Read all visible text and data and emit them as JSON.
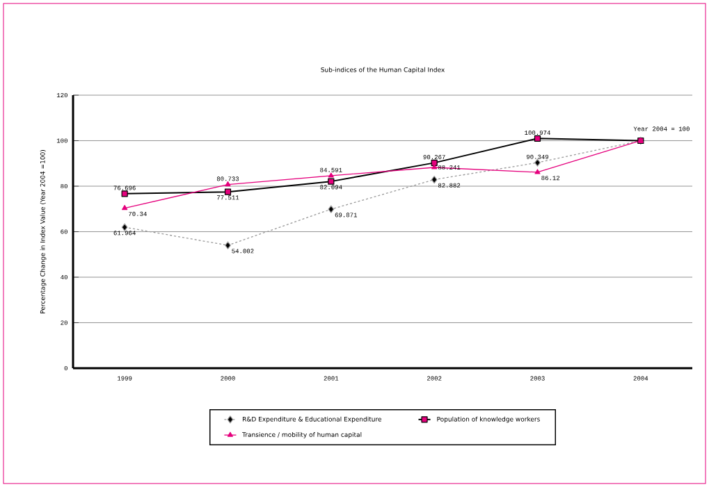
{
  "chart_data": {
    "type": "line",
    "title": "Sub-indices of the Human Capital Index",
    "ylabel": "Percentage Change in Index Value (Year 2004 =100)",
    "categories": [
      "1999",
      "2000",
      "2001",
      "2002",
      "2003",
      "2004"
    ],
    "series": [
      {
        "name": "R&D Expenditure & Educational Expenditure",
        "color": "#999999",
        "marker": "diamond",
        "line_style": "dashed",
        "values": [
          61.964,
          54.002,
          69.871,
          82.882,
          90.349,
          100
        ],
        "value_labels": [
          "61.964",
          "54.002",
          "69.871",
          "82.882",
          "90.349",
          null
        ]
      },
      {
        "name": "Population of knowledge workers",
        "color": "#000000",
        "marker": "square",
        "line_style": "solid",
        "values": [
          76.696,
          77.511,
          82.094,
          90.267,
          100.974,
          100
        ],
        "value_labels": [
          "76.696",
          "77.511",
          "82.094",
          "90.267",
          "100.974",
          null
        ]
      },
      {
        "name": "Transience / mobility of human capital",
        "color": "#e5007d",
        "marker": "triangle",
        "line_style": "solid",
        "values": [
          70.34,
          80.733,
          84.591,
          88.241,
          86.12,
          100
        ],
        "value_labels": [
          "70.34",
          "80.733",
          "84.591",
          "88.241",
          "86.12",
          null
        ]
      }
    ],
    "annotations": [
      "Year 2004 = 100"
    ],
    "ylim": [
      0,
      120
    ],
    "yticks": [
      0,
      20,
      40,
      60,
      80,
      100,
      120
    ],
    "grid": "y",
    "legend": "bottom"
  }
}
